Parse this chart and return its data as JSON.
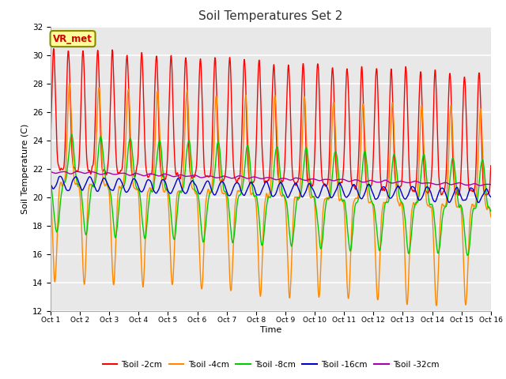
{
  "title": "Soil Temperatures Set 2",
  "xlabel": "Time",
  "ylabel": "Soil Temperature (C)",
  "ylim": [
    12,
    32
  ],
  "xlim": [
    0,
    360
  ],
  "bg_color": "#e8e8e8",
  "fig_color": "#ffffff",
  "x_tick_labels": [
    "Oct 1",
    "Oct 2",
    "Oct 3",
    "Oct 4",
    "Oct 5",
    "Oct 6",
    "Oct 7",
    "Oct 8",
    "Oct 9",
    "Oct 10",
    "Oct 11",
    "Oct 12",
    "Oct 13",
    "Oct 14",
    "Oct 15",
    "Oct 16"
  ],
  "x_tick_positions": [
    0,
    24,
    48,
    72,
    96,
    120,
    144,
    168,
    192,
    216,
    240,
    264,
    288,
    312,
    336,
    360
  ],
  "legend_labels": [
    "Tsoil -2cm",
    "Tsoil -4cm",
    "Tsoil -8cm",
    "Tsoil -16cm",
    "Tsoil -32cm"
  ],
  "legend_colors": [
    "#ff0000",
    "#ff8800",
    "#00cc00",
    "#0000cc",
    "#aa00aa"
  ],
  "annotation_text": "VR_met",
  "annotation_color": "#cc0000",
  "annotation_bg": "#ffff99",
  "annotation_border": "#888800"
}
